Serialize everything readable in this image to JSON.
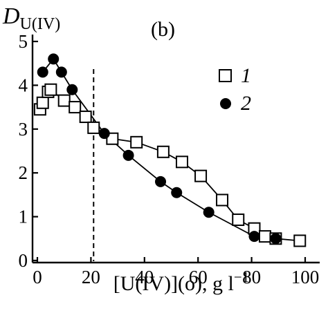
{
  "chart_data": {
    "type": "scatter",
    "panel_label": "(b)",
    "ylabel_main": "D",
    "ylabel_sub": "U(IV)",
    "xlabel": "[U(IV)](o), g l",
    "xlabel_sup": "−1",
    "xlim": [
      0,
      100
    ],
    "ylim": [
      0,
      5
    ],
    "xticks": [
      0,
      20,
      40,
      60,
      80,
      100
    ],
    "yticks": [
      0,
      1,
      2,
      3,
      4,
      5
    ],
    "grid": false,
    "legend_position": "top-right",
    "reference_line": {
      "x": 21,
      "style": "dashed"
    },
    "series": [
      {
        "name": "1",
        "marker": "open-square",
        "points": [
          [
            1,
            3.45
          ],
          [
            2,
            3.6
          ],
          [
            4,
            3.85
          ],
          [
            5,
            3.9
          ],
          [
            10,
            3.65
          ],
          [
            14,
            3.5
          ],
          [
            18,
            3.28
          ],
          [
            21,
            3.03
          ],
          [
            28,
            2.78
          ],
          [
            37,
            2.7
          ],
          [
            47,
            2.48
          ],
          [
            54,
            2.25
          ],
          [
            61,
            1.93
          ],
          [
            69,
            1.38
          ],
          [
            75,
            0.93
          ],
          [
            81,
            0.73
          ],
          [
            85,
            0.55
          ],
          [
            89,
            0.5
          ],
          [
            98,
            0.45
          ]
        ]
      },
      {
        "name": "2",
        "marker": "filled-circle",
        "points": [
          [
            2,
            4.3
          ],
          [
            6,
            4.6
          ],
          [
            9,
            4.3
          ],
          [
            13,
            3.9
          ],
          [
            25,
            2.9
          ],
          [
            34,
            2.4
          ],
          [
            46,
            1.8
          ],
          [
            52,
            1.55
          ],
          [
            64,
            1.1
          ],
          [
            81,
            0.55
          ],
          [
            89,
            0.5
          ]
        ]
      }
    ]
  }
}
